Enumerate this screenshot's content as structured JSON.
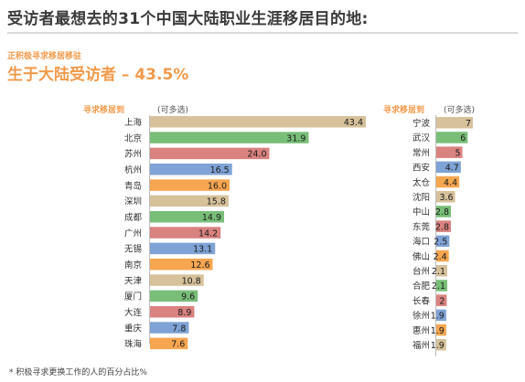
{
  "title": "受访者最想去的31个中国大陆职业生涯移居目的地:",
  "subtitle": "正积极寻求移居移驻",
  "headline": "生于大陆受访者 – 43.5%",
  "left_label": "寻求移居到",
  "left_note": "(可多选)",
  "right_label": "寻求移居到",
  "right_note": "(可多选)",
  "footnote": "* 积极寻求更换工作的人的百分占比%",
  "colors": {
    "tan": "#d6c19a",
    "green": "#78be78",
    "red": "#d9827f",
    "blue": "#7fa3d6",
    "orange": "#f7a650",
    "accent": "#f2994a"
  },
  "chart_data": [
    {
      "type": "bar",
      "orientation": "horizontal",
      "categories": [
        "上海",
        "北京",
        "苏州",
        "杭州",
        "青岛",
        "深圳",
        "成都",
        "广州",
        "无锡",
        "南京",
        "天津",
        "厦门",
        "大连",
        "重庆",
        "珠海"
      ],
      "values": [
        43.4,
        31.9,
        24.0,
        16.5,
        16.0,
        15.8,
        14.9,
        14.2,
        13.1,
        12.6,
        10.8,
        9.6,
        8.9,
        7.8,
        7.6
      ],
      "value_labels": [
        "43.4",
        "31.9",
        "24.0",
        "16.5",
        "16.0",
        "15.8",
        "14.9",
        "14.2",
        "13.1",
        "12.6",
        "10.8",
        "9.6",
        "8.9",
        "7.8",
        "7.6"
      ],
      "colors": [
        "tan",
        "green",
        "red",
        "blue",
        "orange",
        "tan",
        "green",
        "red",
        "blue",
        "orange",
        "tan",
        "green",
        "red",
        "blue",
        "orange"
      ]
    },
    {
      "type": "bar",
      "orientation": "horizontal",
      "categories": [
        "宁波",
        "武汉",
        "常州",
        "西安",
        "太仓",
        "沈阳",
        "中山",
        "东莞",
        "海口",
        "佛山",
        "台州",
        "合肥",
        "长春",
        "徐州",
        "惠州",
        "福州"
      ],
      "values": [
        7,
        6,
        5,
        4.7,
        4.4,
        3.6,
        2.8,
        2.8,
        2.5,
        2.4,
        2.1,
        2.1,
        2,
        1.9,
        1.9,
        1.9
      ],
      "value_labels": [
        "7",
        "6",
        "5",
        "4.7",
        "4.4",
        "3.6",
        "2.8",
        "2.8",
        "2.5",
        "2.4",
        "2.1",
        "2.1",
        "2",
        "1.9",
        "1.9",
        "1.9"
      ],
      "colors": [
        "tan",
        "green",
        "red",
        "blue",
        "orange",
        "tan",
        "green",
        "red",
        "blue",
        "orange",
        "tan",
        "green",
        "red",
        "blue",
        "orange",
        "tan"
      ]
    }
  ]
}
